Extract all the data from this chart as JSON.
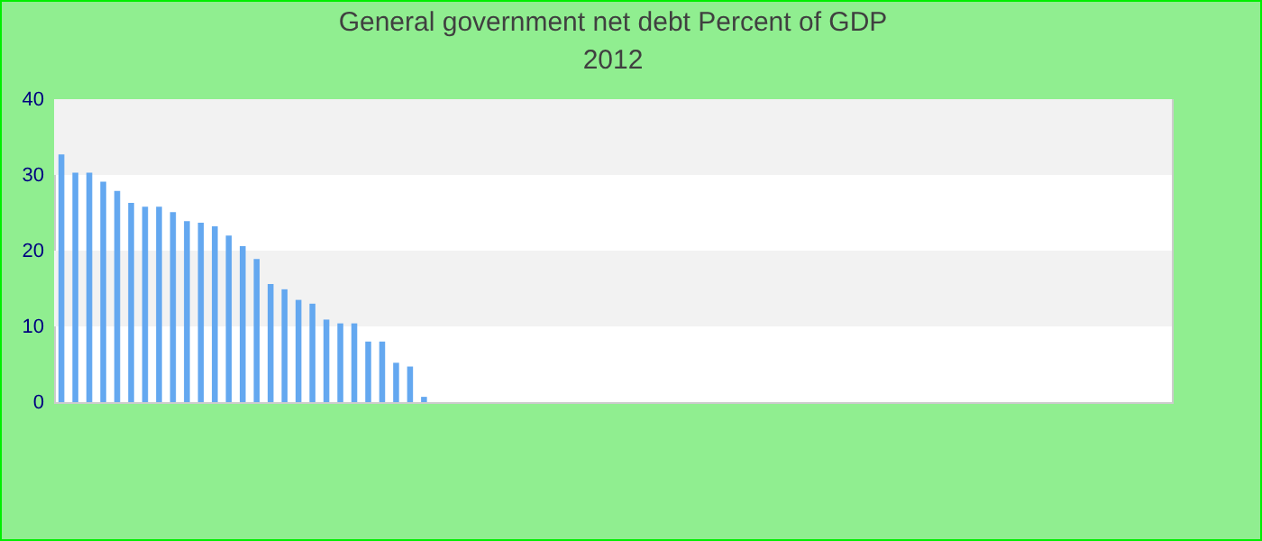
{
  "chart_data": {
    "type": "bar",
    "title": "General government net debt  Percent of GDP",
    "subtitle": "2012",
    "categories": [
      null,
      null,
      null,
      null,
      null,
      null,
      null,
      null,
      null,
      null,
      null,
      null,
      null,
      null,
      null,
      null,
      null,
      null,
      null,
      null,
      null,
      null,
      null,
      null,
      null,
      null,
      null
    ],
    "values": [
      32.7,
      30.3,
      30.3,
      29.1,
      27.9,
      26.3,
      25.8,
      25.8,
      25.1,
      23.9,
      23.7,
      23.2,
      22.0,
      20.6,
      18.9,
      15.6,
      14.9,
      13.5,
      13.0,
      10.9,
      10.4,
      10.4,
      8.0,
      8.0,
      5.2,
      4.7,
      0.7
    ],
    "color": "#64a8f0",
    "ylim": [
      0,
      40
    ],
    "yticks": [
      0,
      10,
      20,
      30,
      40
    ],
    "tick_labels": "y",
    "bands": [
      {
        "axis": "y",
        "from": 10,
        "to": 20,
        "color": "#f2f2f2"
      },
      {
        "axis": "y",
        "from": 30,
        "to": 40,
        "color": "#f2f2f2"
      }
    ]
  }
}
